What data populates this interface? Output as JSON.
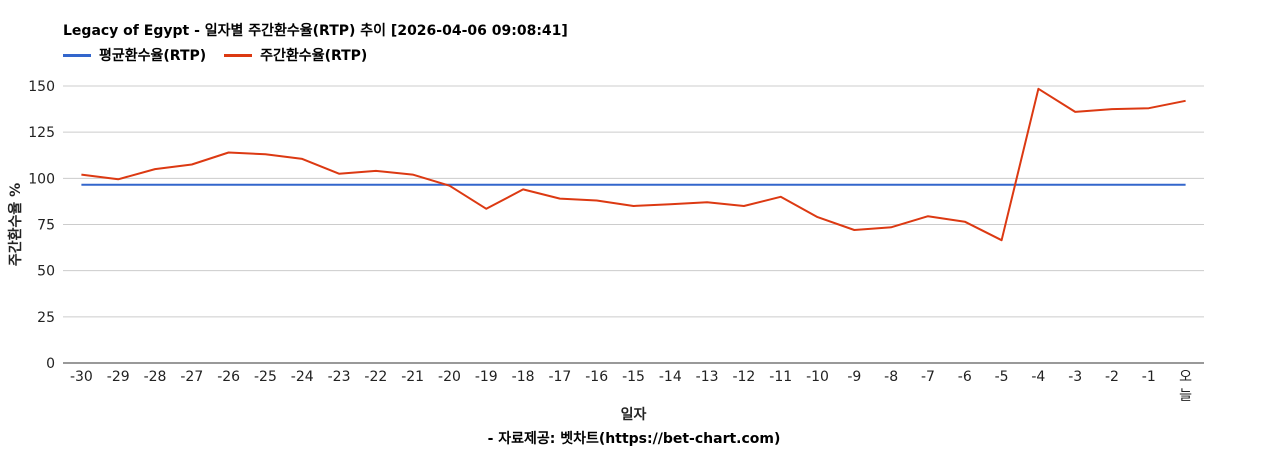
{
  "chart_data": {
    "type": "line",
    "title": "Legacy of Egypt - 일자별 주간환수율(RTP) 추이 [2026-04-06 09:08:41]",
    "xlabel": "일자",
    "ylabel": "주간환수율 %",
    "source": "- 자료제공: 벳차트(https://bet-chart.com)",
    "categories": [
      "-30",
      "-29",
      "-28",
      "-27",
      "-26",
      "-25",
      "-24",
      "-23",
      "-22",
      "-21",
      "-20",
      "-19",
      "-18",
      "-17",
      "-16",
      "-15",
      "-14",
      "-13",
      "-12",
      "-11",
      "-10",
      "-9",
      "-8",
      "-7",
      "-6",
      "-5",
      "-4",
      "-3",
      "-2",
      "-1",
      "오늘"
    ],
    "ylim": [
      0,
      150
    ],
    "yticks": [
      "0",
      "25",
      "50",
      "75",
      "100",
      "125",
      "150"
    ],
    "grid": true,
    "legend": "top-left",
    "series": [
      {
        "name": "평균환수율(RTP)",
        "color": "#3366cc",
        "values": [
          96.5,
          96.5,
          96.5,
          96.5,
          96.5,
          96.5,
          96.5,
          96.5,
          96.5,
          96.5,
          96.5,
          96.5,
          96.5,
          96.5,
          96.5,
          96.5,
          96.5,
          96.5,
          96.5,
          96.5,
          96.5,
          96.5,
          96.5,
          96.5,
          96.5,
          96.5,
          96.5,
          96.5,
          96.5,
          96.5,
          96.5
        ]
      },
      {
        "name": "주간환수율(RTP)",
        "color": "#dc3912",
        "values": [
          102,
          99.5,
          105,
          107.5,
          114,
          113,
          110.5,
          102.5,
          104,
          102,
          96,
          83.5,
          94,
          89,
          88,
          85,
          86,
          87,
          85,
          90,
          79,
          72,
          73.5,
          79.5,
          76.5,
          66.5,
          148.5,
          136,
          137.5,
          138,
          142
        ]
      }
    ]
  }
}
